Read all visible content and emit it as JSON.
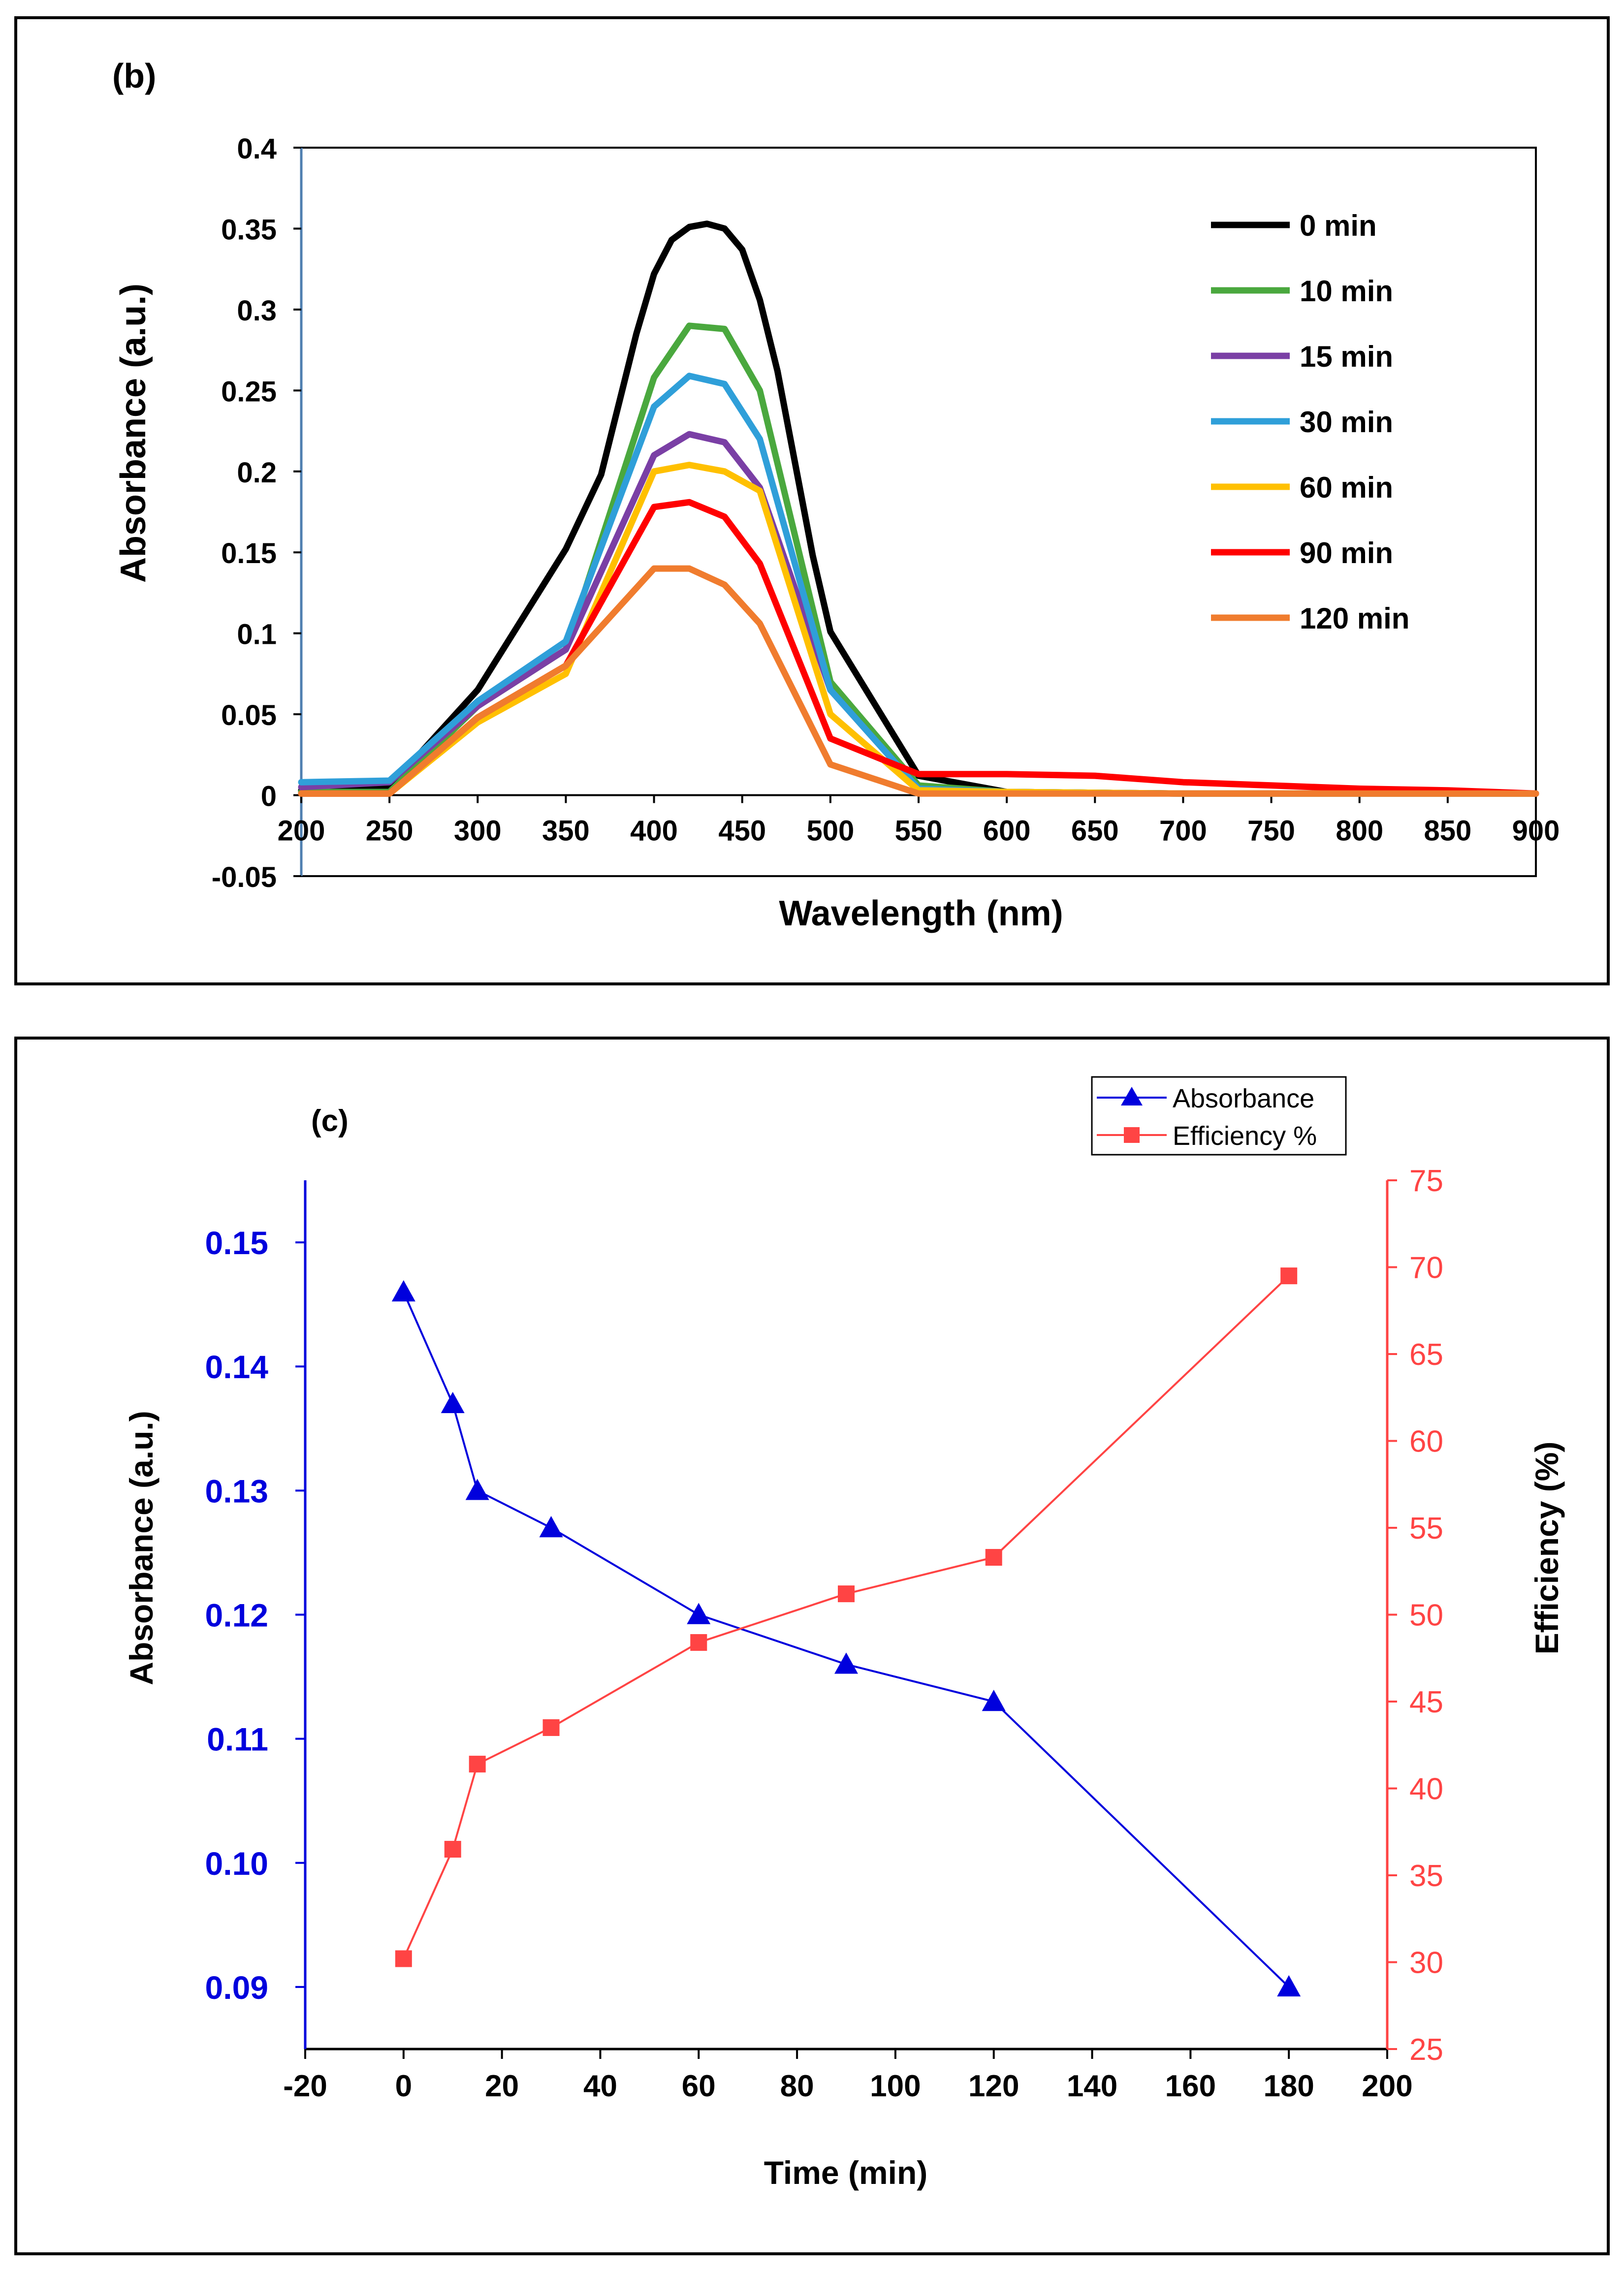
{
  "chart_data": [
    {
      "type": "line",
      "panel_label": "(b)",
      "xlabel": "Wavelength (nm)",
      "ylabel": "Absorbance (a.u.)",
      "xlim": [
        200,
        900
      ],
      "ylim": [
        -0.05,
        0.4
      ],
      "x_ticks": [
        200,
        250,
        300,
        350,
        400,
        450,
        500,
        550,
        600,
        650,
        700,
        750,
        800,
        850,
        900
      ],
      "y_ticks": [
        -0.05,
        0,
        0.05,
        0.1,
        0.15,
        0.2,
        0.25,
        0.3,
        0.35,
        0.4
      ],
      "x_tick_labels": [
        "200",
        "250",
        "300",
        "350",
        "400",
        "450",
        "500",
        "550",
        "600",
        "650",
        "700",
        "750",
        "800",
        "850",
        "900"
      ],
      "y_tick_labels": [
        "-0.05",
        "0",
        "0.05",
        "0.1",
        "0.15",
        "0.2",
        "0.25",
        "0.3",
        "0.35",
        "0.4"
      ],
      "legend_position": "top-right",
      "series": [
        {
          "name": "0 min",
          "color": "#000000",
          "x": [
            200,
            250,
            300,
            350,
            370,
            390,
            400,
            410,
            420,
            430,
            440,
            450,
            460,
            470,
            480,
            490,
            500,
            550,
            600,
            700,
            800,
            900
          ],
          "y": [
            0.003,
            0.005,
            0.065,
            0.152,
            0.198,
            0.285,
            0.322,
            0.343,
            0.351,
            0.353,
            0.35,
            0.337,
            0.306,
            0.262,
            0.205,
            0.148,
            0.101,
            0.012,
            0.002,
            0.001,
            0.001,
            0.001
          ]
        },
        {
          "name": "10 min",
          "color": "#4aa83e",
          "x": [
            200,
            250,
            300,
            350,
            400,
            420,
            440,
            460,
            500,
            550,
            600,
            700,
            800,
            900
          ],
          "y": [
            0.002,
            0.002,
            0.055,
            0.09,
            0.258,
            0.29,
            0.288,
            0.25,
            0.07,
            0.006,
            0.002,
            0.001,
            0.001,
            0.001
          ]
        },
        {
          "name": "15 min",
          "color": "#7a3fa5",
          "x": [
            200,
            250,
            300,
            350,
            400,
            420,
            440,
            460,
            500,
            550,
            600,
            700,
            800,
            900
          ],
          "y": [
            0.005,
            0.008,
            0.055,
            0.09,
            0.21,
            0.223,
            0.218,
            0.19,
            0.065,
            0.004,
            0.002,
            0.001,
            0.001,
            0.001
          ]
        },
        {
          "name": "30 min",
          "color": "#2f9fd9",
          "x": [
            200,
            250,
            300,
            350,
            400,
            420,
            440,
            460,
            500,
            550,
            600,
            700,
            800,
            900
          ],
          "y": [
            0.008,
            0.009,
            0.058,
            0.095,
            0.24,
            0.259,
            0.254,
            0.22,
            0.065,
            0.004,
            0.002,
            0.001,
            0.001,
            0.001
          ]
        },
        {
          "name": "60 min",
          "color": "#ffc000",
          "x": [
            200,
            250,
            300,
            350,
            400,
            420,
            440,
            460,
            500,
            550,
            600,
            700,
            800,
            900
          ],
          "y": [
            0.001,
            0.001,
            0.045,
            0.075,
            0.2,
            0.204,
            0.2,
            0.188,
            0.05,
            0.003,
            0.002,
            0.001,
            0.001,
            0.001
          ]
        },
        {
          "name": "90 min",
          "color": "#ff0000",
          "x": [
            200,
            250,
            300,
            350,
            400,
            420,
            440,
            460,
            500,
            550,
            600,
            650,
            700,
            750,
            800,
            850,
            900
          ],
          "y": [
            0.001,
            0.001,
            0.048,
            0.08,
            0.178,
            0.181,
            0.172,
            0.143,
            0.035,
            0.013,
            0.013,
            0.012,
            0.008,
            0.006,
            0.004,
            0.003,
            0.001
          ]
        },
        {
          "name": "120 min",
          "color": "#f07c2e",
          "x": [
            200,
            250,
            300,
            350,
            400,
            420,
            440,
            460,
            500,
            550,
            600,
            700,
            800,
            900
          ],
          "y": [
            0.001,
            0.001,
            0.048,
            0.08,
            0.14,
            0.14,
            0.13,
            0.106,
            0.019,
            0.001,
            0.001,
            0.001,
            0.001,
            0.001
          ]
        }
      ]
    },
    {
      "type": "line",
      "panel_label": "(c)",
      "xlabel": "Time (min)",
      "ylabel_left": "Absorbance (a.u.)",
      "ylabel_right": "Efficiency (%)",
      "xlim": [
        -20,
        200
      ],
      "ylim_left": [
        0.085,
        0.155
      ],
      "ylim_right": [
        25,
        75
      ],
      "x_ticks": [
        -20,
        0,
        20,
        40,
        60,
        80,
        100,
        120,
        140,
        160,
        180,
        200
      ],
      "y_left_ticks": [
        0.09,
        0.1,
        0.11,
        0.12,
        0.13,
        0.14,
        0.15
      ],
      "y_right_ticks": [
        25,
        30,
        35,
        40,
        45,
        50,
        55,
        60,
        65,
        70,
        75
      ],
      "x_tick_labels": [
        "-20",
        "0",
        "20",
        "40",
        "60",
        "80",
        "100",
        "120",
        "140",
        "160",
        "180",
        "200"
      ],
      "y_left_tick_labels": [
        "0.09",
        "0.10",
        "0.11",
        "0.12",
        "0.13",
        "0.14",
        "0.15"
      ],
      "y_right_tick_labels": [
        "25",
        "30",
        "35",
        "40",
        "45",
        "50",
        "55",
        "60",
        "65",
        "70",
        "75"
      ],
      "legend_position": "top-right",
      "left_axis_color": "#0000dd",
      "right_axis_color": "#ff4444",
      "series": [
        {
          "name": "Absorbance",
          "axis": "left",
          "marker": "triangle",
          "color": "#0000dd",
          "x": [
            0,
            10,
            15,
            30,
            60,
            90,
            120,
            180
          ],
          "y": [
            0.146,
            0.137,
            0.13,
            0.127,
            0.12,
            0.116,
            0.113,
            0.09
          ]
        },
        {
          "name": "Efficiency %",
          "axis": "right",
          "marker": "square",
          "color": "#ff4444",
          "x": [
            0,
            10,
            15,
            30,
            60,
            90,
            120,
            180
          ],
          "y": [
            30.2,
            36.5,
            41.4,
            43.5,
            48.4,
            51.2,
            53.3,
            69.5
          ]
        }
      ]
    }
  ]
}
